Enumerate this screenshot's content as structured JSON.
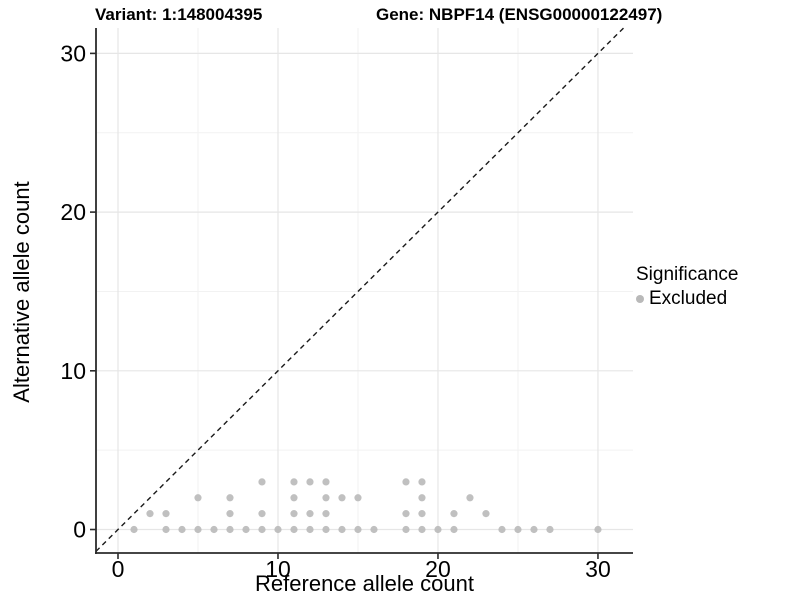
{
  "titles": {
    "variant": "Variant: 1:148004395",
    "gene": "Gene: NBPF14 (ENSG00000122497)"
  },
  "axes": {
    "x_label": "Reference allele count",
    "y_label": "Alternative allele count"
  },
  "legend": {
    "title": "Significance",
    "items": [
      {
        "label": "Excluded",
        "color": "#b9b9b9"
      }
    ]
  },
  "colors": {
    "background": "#ffffff",
    "point": "#b9b9b9",
    "grid_major": "#e6e6e6",
    "grid_minor": "#f2f2f2",
    "axis_line": "#2b2b2b",
    "identity_line": "#1a1a1a",
    "text": "#000000"
  },
  "chart_data": {
    "type": "scatter",
    "title": "Variant: 1:148004395   Gene: NBPF14 (ENSG00000122497)",
    "xlabel": "Reference allele count",
    "ylabel": "Alternative allele count",
    "xlim": [
      -1.375,
      32.19
    ],
    "ylim": [
      -1.48,
      31.6
    ],
    "x_ticks": [
      0,
      10,
      20,
      30
    ],
    "y_ticks": [
      0,
      10,
      20,
      30
    ],
    "x_minor_ticks": [
      5,
      15,
      25
    ],
    "y_minor_ticks": [
      5,
      15,
      25
    ],
    "grid": true,
    "legend_position": "right",
    "identity_line": {
      "equation": "y = x",
      "style": "dashed",
      "color": "#1a1a1a"
    },
    "series": [
      {
        "name": "Excluded",
        "color": "#b9b9b9",
        "points": [
          [
            1,
            0
          ],
          [
            3,
            0
          ],
          [
            4,
            0
          ],
          [
            5,
            0
          ],
          [
            6,
            0
          ],
          [
            7,
            0
          ],
          [
            8,
            0
          ],
          [
            9,
            0
          ],
          [
            10,
            0
          ],
          [
            11,
            0
          ],
          [
            12,
            0
          ],
          [
            13,
            0
          ],
          [
            14,
            0
          ],
          [
            15,
            0
          ],
          [
            16,
            0
          ],
          [
            18,
            0
          ],
          [
            19,
            0
          ],
          [
            20,
            0
          ],
          [
            21,
            0
          ],
          [
            24,
            0
          ],
          [
            25,
            0
          ],
          [
            26,
            0
          ],
          [
            27,
            0
          ],
          [
            30,
            0
          ],
          [
            2,
            1
          ],
          [
            3,
            1
          ],
          [
            7,
            1
          ],
          [
            9,
            1
          ],
          [
            11,
            1
          ],
          [
            12,
            1
          ],
          [
            13,
            1
          ],
          [
            18,
            1
          ],
          [
            19,
            1
          ],
          [
            21,
            1
          ],
          [
            23,
            1
          ],
          [
            5,
            2
          ],
          [
            7,
            2
          ],
          [
            11,
            2
          ],
          [
            13,
            2
          ],
          [
            14,
            2
          ],
          [
            15,
            2
          ],
          [
            19,
            2
          ],
          [
            22,
            2
          ],
          [
            9,
            3
          ],
          [
            11,
            3
          ],
          [
            12,
            3
          ],
          [
            13,
            3
          ],
          [
            18,
            3
          ],
          [
            19,
            3
          ]
        ]
      }
    ]
  }
}
